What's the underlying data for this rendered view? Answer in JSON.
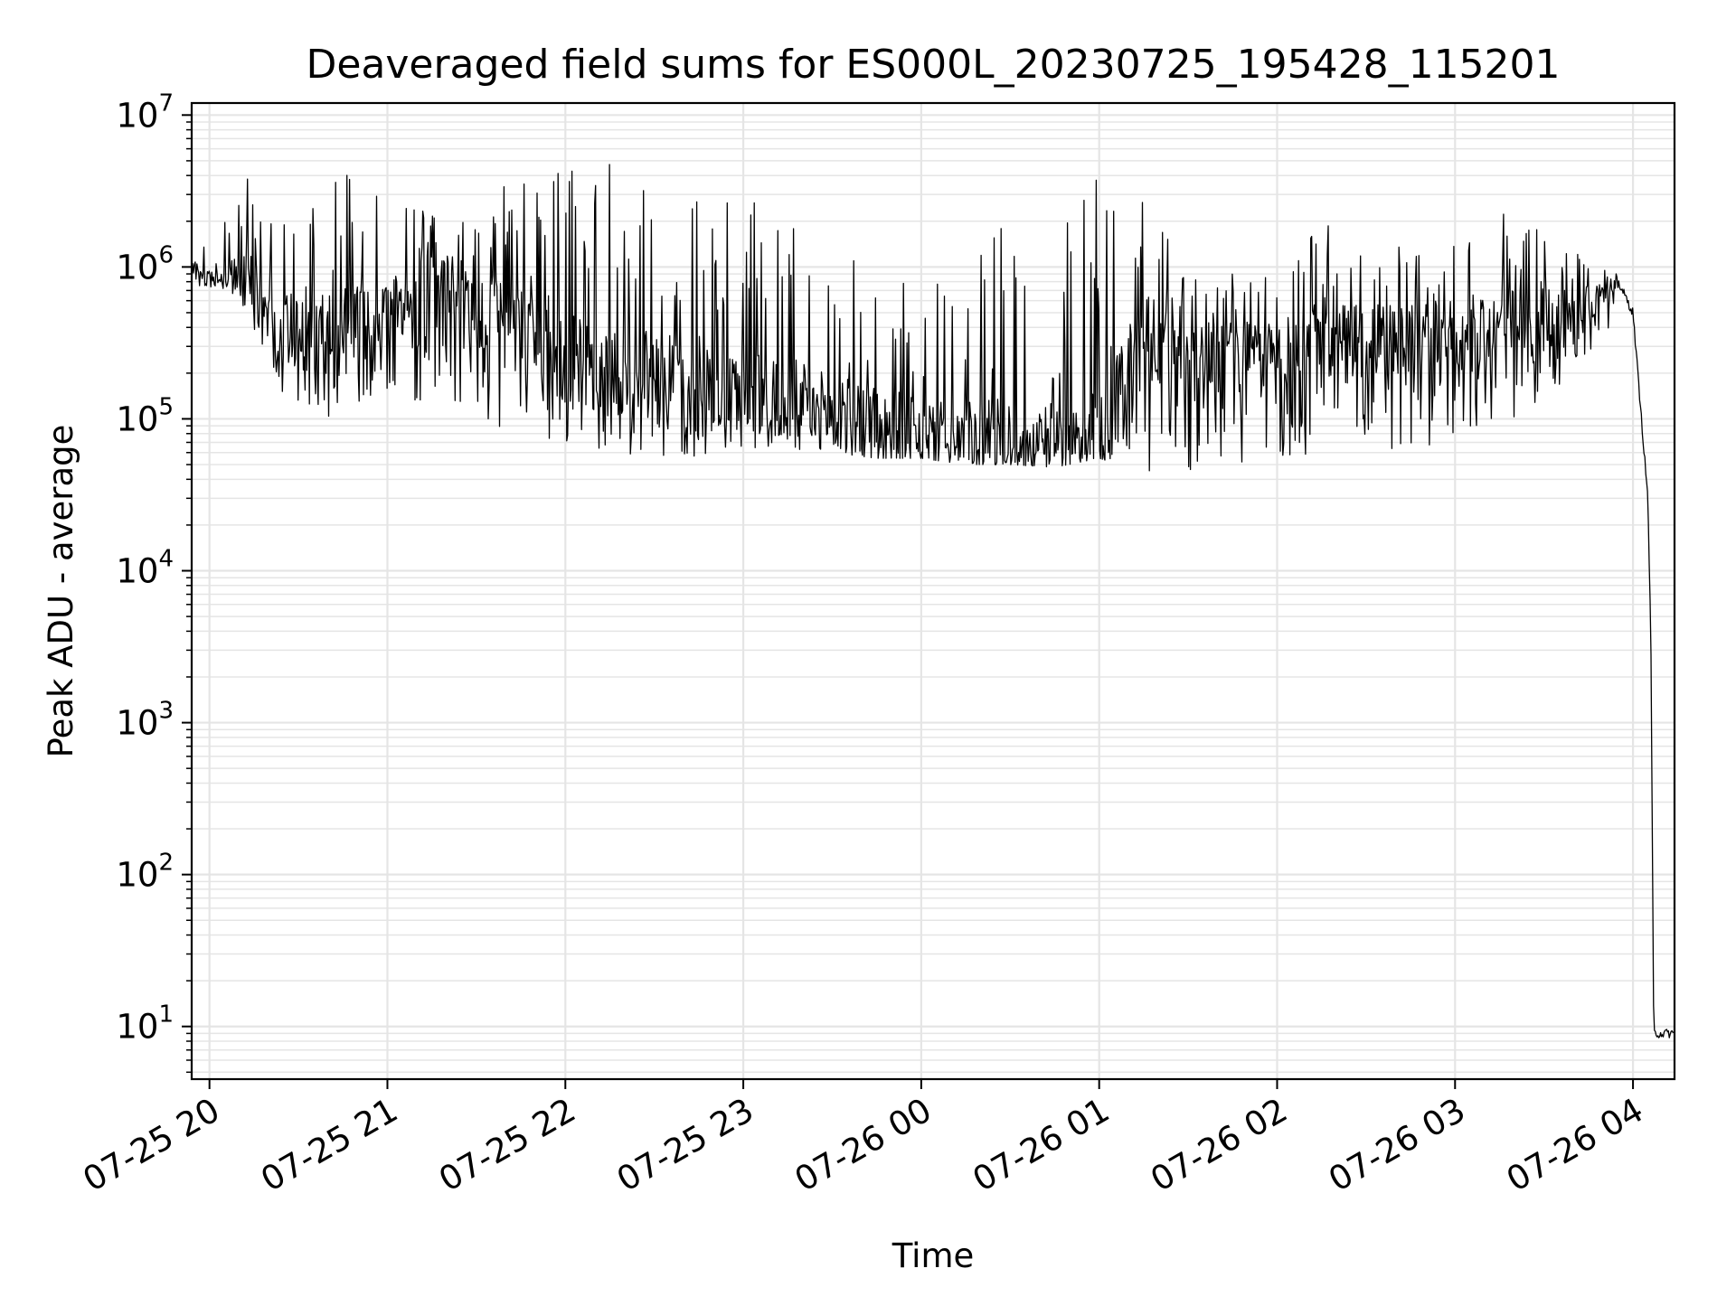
{
  "chart_data": {
    "type": "line",
    "title": "Deaveraged field sums for ES000L_20230725_195428_115201",
    "xlabel": "Time",
    "ylabel": "Peak ADU - average",
    "yscale": "log",
    "ylim": [
      4.5,
      12000000
    ],
    "y_ticks": [
      {
        "base": "10",
        "exp": "1",
        "value": 10
      },
      {
        "base": "10",
        "exp": "2",
        "value": 100
      },
      {
        "base": "10",
        "exp": "3",
        "value": 1000
      },
      {
        "base": "10",
        "exp": "4",
        "value": 10000
      },
      {
        "base": "10",
        "exp": "5",
        "value": 100000
      },
      {
        "base": "10",
        "exp": "6",
        "value": 1000000
      },
      {
        "base": "10",
        "exp": "7",
        "value": 10000000
      }
    ],
    "xlim": [
      "2023-07-25 19:54",
      "2023-07-26 04:14"
    ],
    "x_ticks": [
      {
        "label": "07-25 20",
        "value": "2023-07-25 20:00"
      },
      {
        "label": "07-25 21",
        "value": "2023-07-25 21:00"
      },
      {
        "label": "07-25 22",
        "value": "2023-07-25 22:00"
      },
      {
        "label": "07-25 23",
        "value": "2023-07-25 23:00"
      },
      {
        "label": "07-26 00",
        "value": "2023-07-26 00:00"
      },
      {
        "label": "07-26 01",
        "value": "2023-07-26 01:00"
      },
      {
        "label": "07-26 02",
        "value": "2023-07-26 02:00"
      },
      {
        "label": "07-26 03",
        "value": "2023-07-26 03:00"
      },
      {
        "label": "07-26 04",
        "value": "2023-07-26 04:00"
      }
    ],
    "grid": true,
    "line_color": "#000000",
    "grid_color": "#e5e5e5",
    "series": [
      {
        "x": [
          "2023-07-25 19:54",
          "2023-07-25 19:58",
          "2023-07-25 20:05",
          "2023-07-25 20:10",
          "2023-07-25 20:20",
          "2023-07-25 20:30",
          "2023-07-25 20:45",
          "2023-07-25 21:00",
          "2023-07-25 21:15",
          "2023-07-25 21:30",
          "2023-07-25 21:45",
          "2023-07-25 22:00",
          "2023-07-25 22:15",
          "2023-07-25 22:30",
          "2023-07-25 22:45",
          "2023-07-25 23:00",
          "2023-07-25 23:15",
          "2023-07-25 23:30",
          "2023-07-25 23:45",
          "2023-07-26 00:00",
          "2023-07-26 00:15",
          "2023-07-26 00:30",
          "2023-07-26 00:45",
          "2023-07-26 01:00",
          "2023-07-26 01:15",
          "2023-07-26 01:30",
          "2023-07-26 01:45",
          "2023-07-26 02:00",
          "2023-07-26 02:15",
          "2023-07-26 02:30",
          "2023-07-26 02:45",
          "2023-07-26 03:00",
          "2023-07-26 03:15",
          "2023-07-26 03:30",
          "2023-07-26 03:45",
          "2023-07-26 03:55",
          "2023-07-26 04:00",
          "2023-07-26 04:05",
          "2023-07-26 04:06",
          "2023-07-26 04:07",
          "2023-07-26 04:14"
        ],
        "mid": [
          1000000,
          800000,
          950000,
          900000,
          500000,
          350000,
          400000,
          450000,
          1000000,
          550000,
          350000,
          250000,
          220000,
          180000,
          150000,
          160000,
          130000,
          110000,
          90000,
          80000,
          75000,
          70000,
          68000,
          70000,
          300000,
          280000,
          250000,
          280000,
          300000,
          320000,
          330000,
          350000,
          380000,
          450000,
          550000,
          800000,
          500000,
          30000,
          4000,
          9,
          9
        ],
        "low": [
          700000,
          650000,
          700000,
          600000,
          200000,
          100000,
          100000,
          150000,
          120000,
          90000,
          75000,
          70000,
          60000,
          55000,
          55000,
          65000,
          60000,
          60000,
          55000,
          55000,
          50000,
          50000,
          48000,
          55000,
          45000,
          45000,
          50000,
          55000,
          55000,
          60000,
          65000,
          70000,
          80000,
          120000,
          250000,
          500000,
          300000,
          20000,
          3500,
          8,
          8
        ],
        "high": [
          1600000,
          1500000,
          2200000,
          4000000,
          3500000,
          2800000,
          4200000,
          2600000,
          3300000,
          3000000,
          4500000,
          5000000,
          6000000,
          3000000,
          3000000,
          2800000,
          3500000,
          1500000,
          2800000,
          1000000,
          1500000,
          2200000,
          1500000,
          4200000,
          4200000,
          1200000,
          1300000,
          1200000,
          2100000,
          2200000,
          1300000,
          2000000,
          2700000,
          2300000,
          1300000,
          1100000,
          900000,
          50000,
          5500,
          10,
          10
        ]
      }
    ]
  }
}
